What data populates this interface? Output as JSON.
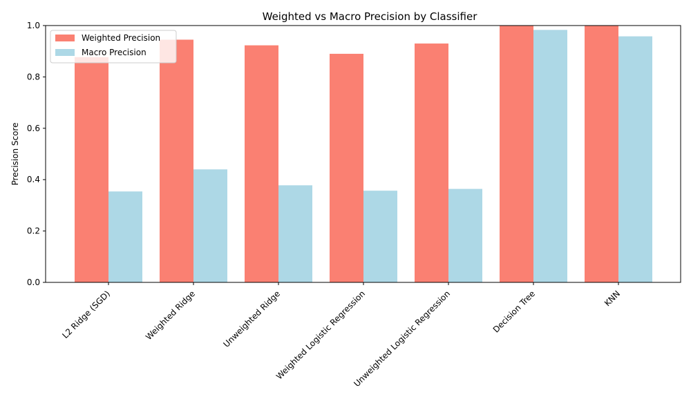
{
  "chart_data": {
    "type": "bar",
    "title": "Weighted vs Macro Precision by Classifier",
    "xlabel": "",
    "ylabel": "Precision Score",
    "ylim": [
      0,
      1.0
    ],
    "yticks": [
      "0.0",
      "0.2",
      "0.4",
      "0.6",
      "0.8",
      "1.0"
    ],
    "ytick_values": [
      0,
      0.2,
      0.4,
      0.6,
      0.8,
      1.0
    ],
    "categories": [
      "L2 Ridge (SGD)",
      "Weighted Ridge",
      "Unweighted Ridge",
      "Weighted Logistic Regression",
      "Unweighted Logistic Regression",
      "Decision Tree",
      "KNN"
    ],
    "series": [
      {
        "name": "Weighted Precision",
        "color": "#fa8072",
        "values": [
          0.877,
          0.945,
          0.923,
          0.89,
          0.93,
          1.0,
          1.0
        ]
      },
      {
        "name": "Macro Precision",
        "color": "#add8e6",
        "values": [
          0.354,
          0.44,
          0.378,
          0.357,
          0.364,
          0.983,
          0.958
        ]
      }
    ],
    "legend_position": "top-left",
    "grid": false
  }
}
